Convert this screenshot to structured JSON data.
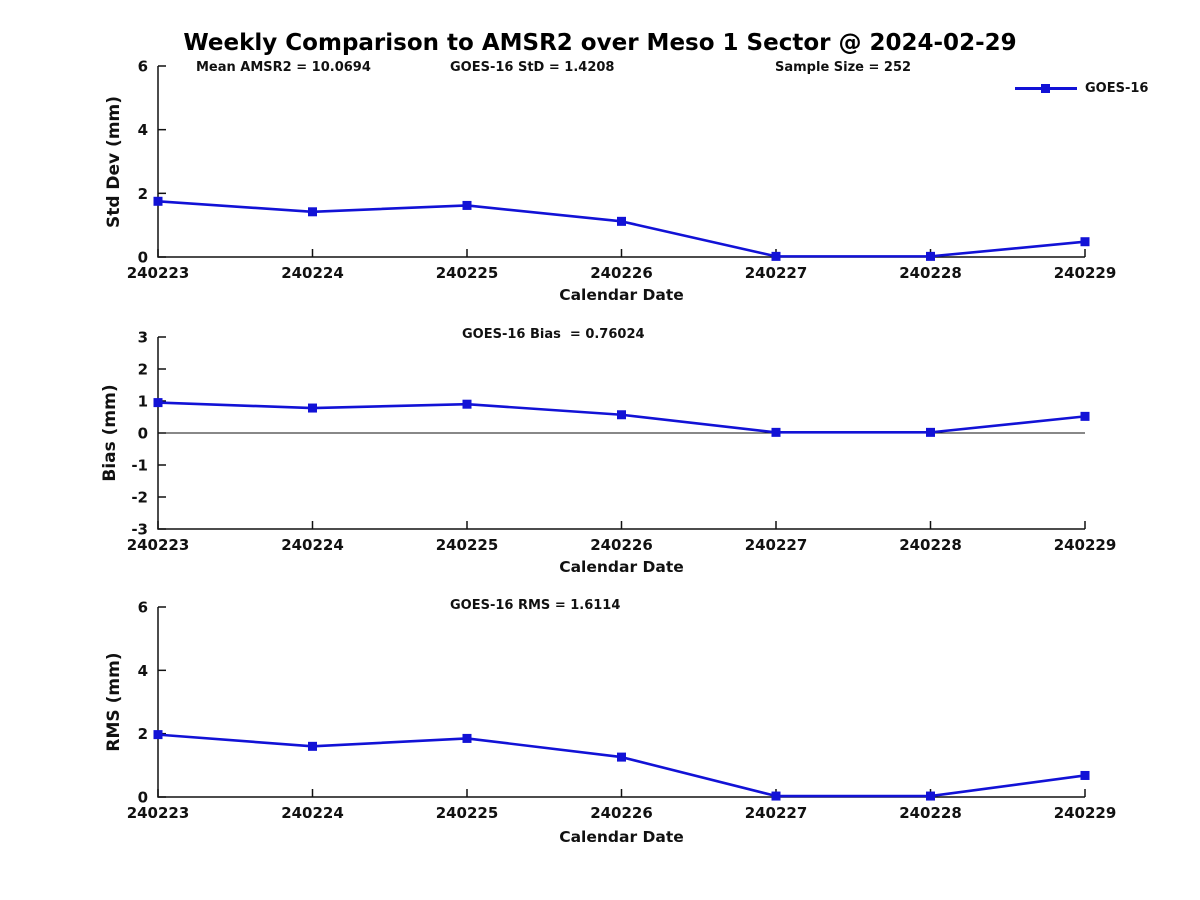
{
  "page_title": "Weekly Comparison to AMSR2 over Meso 1 Sector @ 2024-02-29",
  "text_color": "#111111",
  "line_color": "#1212d6",
  "legend": {
    "label": "GOES-16"
  },
  "chart_data": [
    {
      "type": "line",
      "title": "Weekly Comparison to AMSR2 over Meso 1 Sector @ 2024-02-29",
      "annotations": [
        "Mean AMSR2 = 10.0694",
        "GOES-16 StD = 1.4208",
        "Sample Size = 252"
      ],
      "categories": [
        "240223",
        "240224",
        "240225",
        "240226",
        "240227",
        "240228",
        "240229"
      ],
      "series": [
        {
          "name": "GOES-16",
          "values": [
            1.75,
            1.42,
            1.62,
            1.12,
            0.02,
            0.02,
            0.48
          ]
        }
      ],
      "xlabel": "Calendar Date",
      "ylabel": "Std Dev (mm)",
      "ylim": [
        0,
        6
      ],
      "yticks": [
        0,
        2,
        4,
        6
      ],
      "grid": false,
      "legend_position": "top-right",
      "zero_line": false
    },
    {
      "type": "line",
      "annotations": [
        "GOES-16 Bias  = 0.76024"
      ],
      "categories": [
        "240223",
        "240224",
        "240225",
        "240226",
        "240227",
        "240228",
        "240229"
      ],
      "series": [
        {
          "name": "GOES-16",
          "values": [
            0.95,
            0.78,
            0.9,
            0.57,
            0.02,
            0.02,
            0.52
          ]
        }
      ],
      "xlabel": "Calendar Date",
      "ylabel": "Bias (mm)",
      "ylim": [
        -3,
        3
      ],
      "yticks": [
        -3,
        -2,
        -1,
        0,
        1,
        2,
        3
      ],
      "grid": false,
      "legend_position": "none",
      "zero_line": true
    },
    {
      "type": "line",
      "annotations": [
        "GOES-16 RMS = 1.6114"
      ],
      "categories": [
        "240223",
        "240224",
        "240225",
        "240226",
        "240227",
        "240228",
        "240229"
      ],
      "series": [
        {
          "name": "GOES-16",
          "values": [
            1.97,
            1.6,
            1.85,
            1.26,
            0.03,
            0.03,
            0.68
          ]
        }
      ],
      "xlabel": "Calendar Date",
      "ylabel": "RMS (mm)",
      "ylim": [
        0,
        6
      ],
      "yticks": [
        0,
        2,
        4,
        6
      ],
      "grid": false,
      "legend_position": "none",
      "zero_line": false
    }
  ]
}
